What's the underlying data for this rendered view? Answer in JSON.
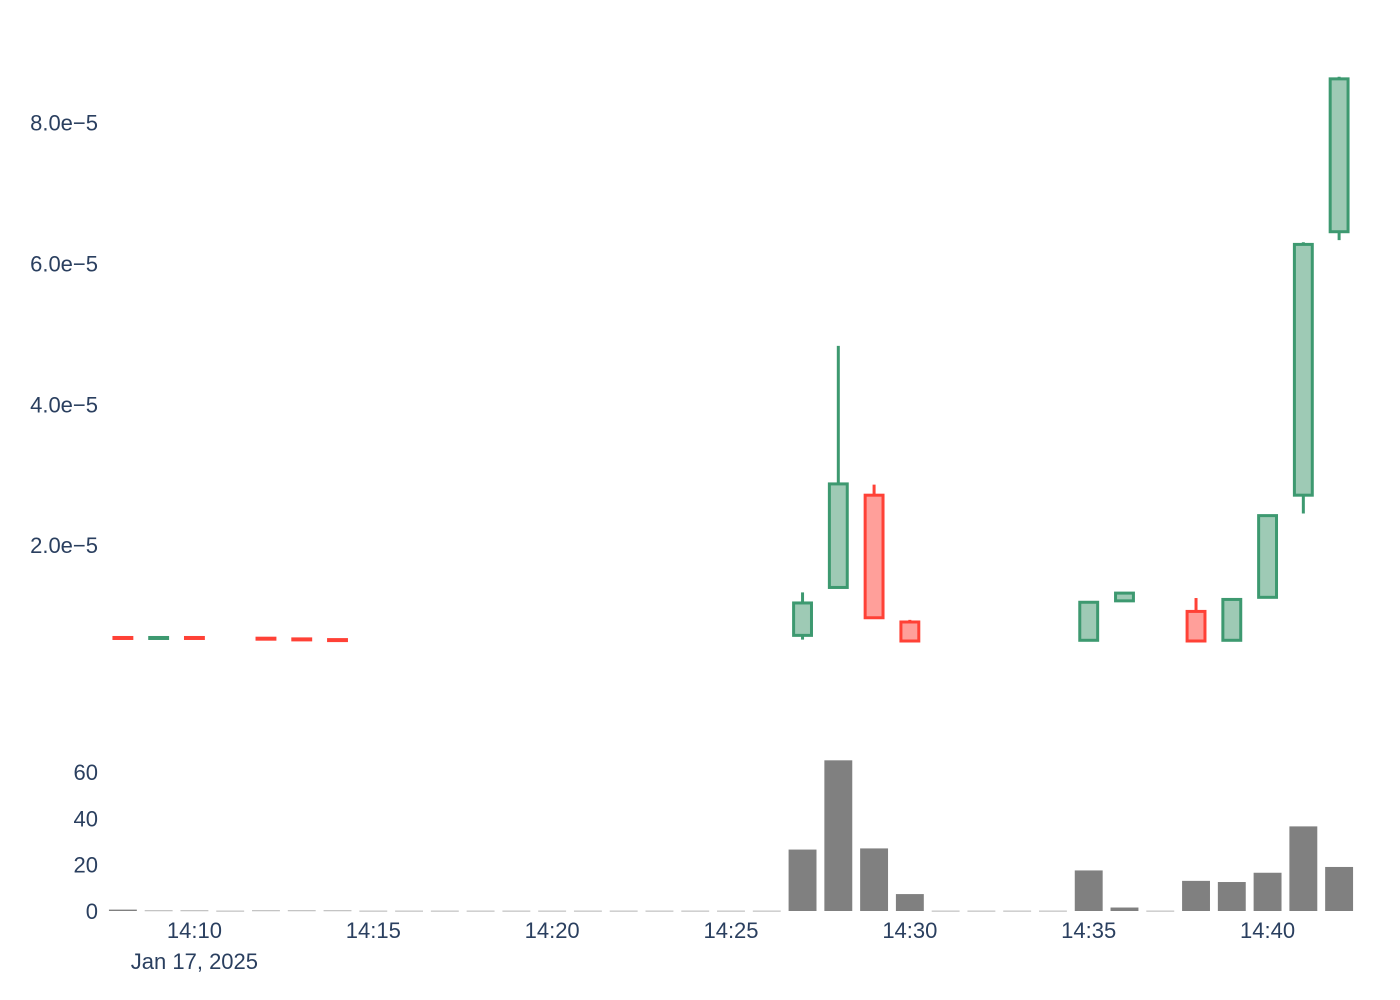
{
  "chart_data": [
    {
      "type": "candlestick",
      "title": "",
      "xlabel": "",
      "ylabel": "",
      "ylim": [
        2e-06,
        9.2e-05
      ],
      "grid": false,
      "legend": "none",
      "colors": {
        "increasing_line": "#3d9970",
        "increasing_fill": "#9ecab5",
        "decreasing_line": "#ff4136",
        "decreasing_fill": "#ff9f9a"
      },
      "y_ticks": [
        {
          "value": 2e-05,
          "label": "2.0e−5"
        },
        {
          "value": 4e-05,
          "label": "4.0e−5"
        },
        {
          "value": 6e-05,
          "label": "6.0e−5"
        },
        {
          "value": 8e-05,
          "label": "8.0e−5"
        }
      ],
      "x_ticks": [
        {
          "minute": 10,
          "label": "14:10"
        },
        {
          "minute": 15,
          "label": "14:15"
        },
        {
          "minute": 20,
          "label": "14:20"
        },
        {
          "minute": 25,
          "label": "14:25"
        },
        {
          "minute": 30,
          "label": "14:30"
        },
        {
          "minute": 35,
          "label": "14:35"
        },
        {
          "minute": 40,
          "label": "14:40"
        }
      ],
      "x_date_label": "Jan 17, 2025",
      "candles": [
        {
          "time": "14:08",
          "open": 6.9e-06,
          "high": 6.9e-06,
          "low": 6.8e-06,
          "close": 6.8e-06
        },
        {
          "time": "14:09",
          "open": 6.8e-06,
          "high": 6.9e-06,
          "low": 6.8e-06,
          "close": 6.9e-06
        },
        {
          "time": "14:10",
          "open": 6.9e-06,
          "high": 6.9e-06,
          "low": 6.8e-06,
          "close": 6.8e-06
        },
        {
          "time": "14:12",
          "open": 6.8e-06,
          "high": 6.8e-06,
          "low": 6.7e-06,
          "close": 6.7e-06
        },
        {
          "time": "14:13",
          "open": 6.7e-06,
          "high": 6.7e-06,
          "low": 6.6e-06,
          "close": 6.6e-06
        },
        {
          "time": "14:14",
          "open": 6.6e-06,
          "high": 6.6e-06,
          "low": 6.5e-06,
          "close": 6.5e-06
        },
        {
          "time": "14:27",
          "open": 7.2e-06,
          "high": 1.33e-05,
          "low": 6.6e-06,
          "close": 1.18e-05
        },
        {
          "time": "14:28",
          "open": 1.4e-05,
          "high": 4.83e-05,
          "low": 1.4e-05,
          "close": 2.87e-05
        },
        {
          "time": "14:29",
          "open": 2.71e-05,
          "high": 2.86e-05,
          "low": 9.6e-06,
          "close": 9.7e-06
        },
        {
          "time": "14:30",
          "open": 9.1e-06,
          "high": 9.4e-06,
          "low": 6.3e-06,
          "close": 6.4e-06
        },
        {
          "time": "14:35",
          "open": 6.5e-06,
          "high": 1.2e-05,
          "low": 6.5e-06,
          "close": 1.19e-05
        },
        {
          "time": "14:36",
          "open": 1.21e-05,
          "high": 1.33e-05,
          "low": 1.21e-05,
          "close": 1.32e-05
        },
        {
          "time": "14:38",
          "open": 1.06e-05,
          "high": 1.25e-05,
          "low": 6.3e-06,
          "close": 6.4e-06
        },
        {
          "time": "14:39",
          "open": 6.5e-06,
          "high": 1.24e-05,
          "low": 6.5e-06,
          "close": 1.23e-05
        },
        {
          "time": "14:40",
          "open": 1.26e-05,
          "high": 2.42e-05,
          "low": 1.26e-05,
          "close": 2.42e-05
        },
        {
          "time": "14:41",
          "open": 2.71e-05,
          "high": 6.3e-05,
          "low": 2.45e-05,
          "close": 6.27e-05
        },
        {
          "time": "14:42",
          "open": 6.45e-05,
          "high": 8.65e-05,
          "low": 6.33e-05,
          "close": 8.62e-05
        }
      ]
    },
    {
      "type": "bar",
      "title": "",
      "xlabel": "",
      "ylabel": "",
      "ylim": [
        0,
        66
      ],
      "bar_color": "#808080",
      "y_ticks": [
        {
          "value": 0,
          "label": "0"
        },
        {
          "value": 20,
          "label": "20"
        },
        {
          "value": 40,
          "label": "40"
        },
        {
          "value": 60,
          "label": "60"
        }
      ],
      "volume": [
        {
          "time": "14:08",
          "value": 0.6
        },
        {
          "time": "14:09",
          "value": 0.2
        },
        {
          "time": "14:10",
          "value": 0.2
        },
        {
          "time": "14:11",
          "value": 0.1
        },
        {
          "time": "14:12",
          "value": 0.2
        },
        {
          "time": "14:13",
          "value": 0.2
        },
        {
          "time": "14:14",
          "value": 0.2
        },
        {
          "time": "14:15",
          "value": 0.1
        },
        {
          "time": "14:16",
          "value": 0.1
        },
        {
          "time": "14:17",
          "value": 0.1
        },
        {
          "time": "14:18",
          "value": 0.1
        },
        {
          "time": "14:19",
          "value": 0.1
        },
        {
          "time": "14:20",
          "value": 0.1
        },
        {
          "time": "14:21",
          "value": 0.1
        },
        {
          "time": "14:22",
          "value": 0.1
        },
        {
          "time": "14:23",
          "value": 0.1
        },
        {
          "time": "14:24",
          "value": 0.1
        },
        {
          "time": "14:25",
          "value": 0.1
        },
        {
          "time": "14:26",
          "value": 0.1
        },
        {
          "time": "14:27",
          "value": 26.5
        },
        {
          "time": "14:28",
          "value": 65
        },
        {
          "time": "14:29",
          "value": 27
        },
        {
          "time": "14:30",
          "value": 7.3
        },
        {
          "time": "14:31",
          "value": 0.1
        },
        {
          "time": "14:32",
          "value": 0.1
        },
        {
          "time": "14:33",
          "value": 0.1
        },
        {
          "time": "14:34",
          "value": 0.1
        },
        {
          "time": "14:35",
          "value": 17.5
        },
        {
          "time": "14:36",
          "value": 1.5
        },
        {
          "time": "14:37",
          "value": 0.1
        },
        {
          "time": "14:38",
          "value": 13
        },
        {
          "time": "14:39",
          "value": 12.5
        },
        {
          "time": "14:40",
          "value": 16.5
        },
        {
          "time": "14:41",
          "value": 36.5
        },
        {
          "time": "14:42",
          "value": 19
        }
      ]
    }
  ]
}
